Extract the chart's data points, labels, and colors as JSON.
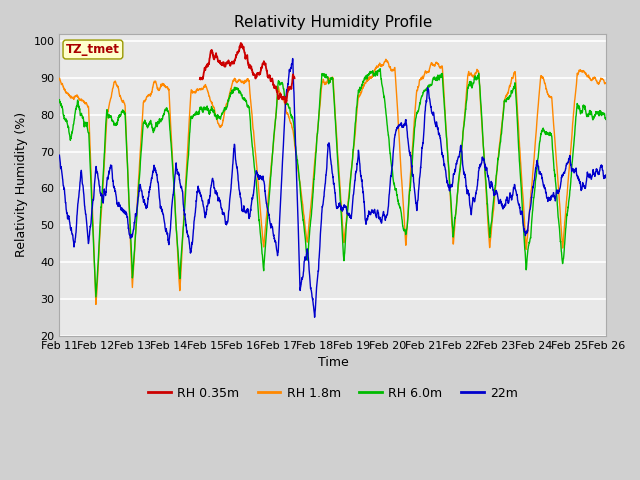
{
  "title": "Relativity Humidity Profile",
  "xlabel": "Time",
  "ylabel": "Relativity Humidity (%)",
  "ylim": [
    20,
    102
  ],
  "yticks": [
    20,
    30,
    40,
    50,
    60,
    70,
    80,
    90,
    100
  ],
  "xtick_labels": [
    "Feb 11",
    "Feb 12",
    "Feb 13",
    "Feb 14",
    "Feb 15",
    "Feb 16",
    "Feb 17",
    "Feb 18",
    "Feb 19",
    "Feb 20",
    "Feb 21",
    "Feb 22",
    "Feb 23",
    "Feb 24",
    "Feb 25",
    "Feb 26"
  ],
  "annotation_text": "TZ_tmet",
  "annotation_color": "#aa0000",
  "annotation_bg": "#ffffcc",
  "annotation_border": "#999900",
  "colors": {
    "rh035": "#cc0000",
    "rh18": "#ff8800",
    "rh60": "#00bb00",
    "rh22m": "#0000cc"
  },
  "legend_labels": [
    "RH 0.35m",
    "RH 1.8m",
    "RH 6.0m",
    "22m"
  ],
  "fig_bg": "#d0d0d0",
  "plot_bg": "#e8e8e8",
  "n_points": 3000
}
